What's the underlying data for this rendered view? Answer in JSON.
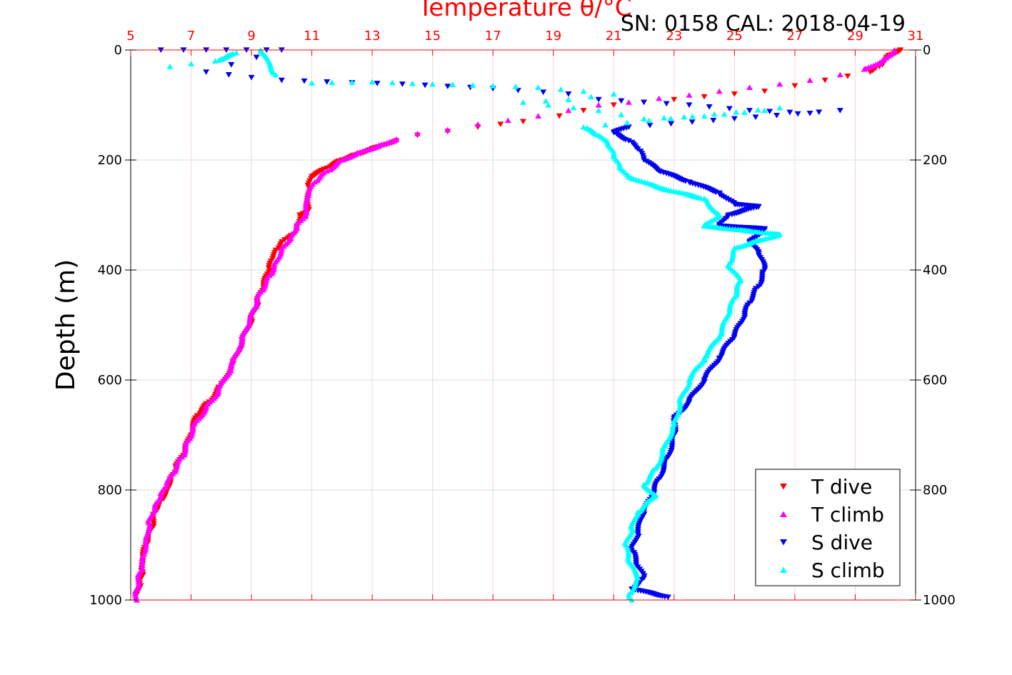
{
  "chart_data": {
    "type": "scatter",
    "annotation": "SN: 0158  CAL: 2018-04-19",
    "top_axis_label": "Temperature θ/°C",
    "ylabel": "Depth (m)",
    "x_top_ticks": [
      5,
      7,
      9,
      11,
      13,
      15,
      17,
      19,
      21,
      23,
      25,
      27,
      29,
      31
    ],
    "x_top_range": [
      5,
      31
    ],
    "y_ticks": [
      0,
      200,
      400,
      600,
      800,
      1000
    ],
    "y_range": [
      0,
      1000
    ],
    "y_reversed": true,
    "grid": true,
    "legend_position": "bottom-right",
    "colors": {
      "t_dive": "#ff0000",
      "t_climb": "#ff00ff",
      "s_dive": "#0000ee",
      "s_climb": "#00ffff",
      "axis_top": "#ff0000",
      "grid": "#d9d9d9"
    },
    "series": [
      {
        "name": "T dive",
        "marker": "triangle-down",
        "color": "#ff0000",
        "points": [
          [
            30.5,
            0
          ],
          [
            30.1,
            10
          ],
          [
            29.8,
            30
          ],
          [
            29.5,
            40
          ],
          [
            28.0,
            55
          ],
          [
            27.0,
            65
          ],
          [
            26.0,
            75
          ],
          [
            25.0,
            80
          ],
          [
            24.0,
            85
          ],
          [
            23.0,
            90
          ],
          [
            22.0,
            95
          ],
          [
            21.0,
            100
          ],
          [
            20.0,
            110
          ],
          [
            19.2,
            120
          ],
          [
            18.0,
            130
          ],
          [
            16.5,
            140
          ],
          [
            15.5,
            148
          ],
          [
            14.5,
            155
          ],
          [
            13.8,
            165
          ],
          [
            13.0,
            180
          ],
          [
            12.5,
            190
          ],
          [
            12.0,
            200
          ],
          [
            11.5,
            215
          ],
          [
            11.0,
            230
          ],
          [
            10.9,
            250
          ],
          [
            10.9,
            290
          ],
          [
            10.6,
            300
          ],
          [
            10.5,
            320
          ],
          [
            10.4,
            335
          ],
          [
            10.1,
            345
          ],
          [
            9.9,
            360
          ],
          [
            9.7,
            380
          ],
          [
            9.6,
            400
          ],
          [
            9.4,
            430
          ],
          [
            9.2,
            460
          ],
          [
            9.0,
            490
          ],
          [
            8.7,
            530
          ],
          [
            8.4,
            570
          ],
          [
            8.0,
            610
          ],
          [
            7.6,
            640
          ],
          [
            7.2,
            665
          ],
          [
            7.0,
            700
          ],
          [
            6.8,
            730
          ],
          [
            6.5,
            760
          ],
          [
            6.3,
            780
          ],
          [
            6.2,
            800
          ],
          [
            6.0,
            820
          ],
          [
            5.8,
            840
          ],
          [
            5.7,
            870
          ],
          [
            5.5,
            900
          ],
          [
            5.4,
            930
          ],
          [
            5.4,
            950
          ],
          [
            5.3,
            970
          ],
          [
            5.2,
            990
          ]
        ]
      },
      {
        "name": "T climb",
        "marker": "triangle-up",
        "color": "#ff00ff",
        "points": [
          [
            30.3,
            0
          ],
          [
            29.9,
            20
          ],
          [
            29.3,
            35
          ],
          [
            28.5,
            45
          ],
          [
            27.5,
            55
          ],
          [
            26.5,
            62
          ],
          [
            25.5,
            68
          ],
          [
            24.5,
            75
          ],
          [
            23.5,
            82
          ],
          [
            22.5,
            88
          ],
          [
            21.5,
            95
          ],
          [
            20.5,
            100
          ],
          [
            19.5,
            110
          ],
          [
            18.5,
            120
          ],
          [
            17.5,
            128
          ],
          [
            16.5,
            135
          ],
          [
            15.5,
            145
          ],
          [
            14.5,
            152
          ],
          [
            13.8,
            162
          ],
          [
            13.2,
            175
          ],
          [
            12.6,
            185
          ],
          [
            12.0,
            200
          ],
          [
            11.5,
            220
          ],
          [
            11.1,
            240
          ],
          [
            10.9,
            260
          ],
          [
            10.8,
            300
          ],
          [
            10.5,
            320
          ],
          [
            10.3,
            340
          ],
          [
            10.0,
            360
          ],
          [
            9.8,
            385
          ],
          [
            9.6,
            410
          ],
          [
            9.3,
            440
          ],
          [
            9.1,
            470
          ],
          [
            8.9,
            500
          ],
          [
            8.6,
            540
          ],
          [
            8.3,
            580
          ],
          [
            7.9,
            620
          ],
          [
            7.5,
            650
          ],
          [
            7.1,
            680
          ],
          [
            6.9,
            710
          ],
          [
            6.7,
            740
          ],
          [
            6.4,
            770
          ],
          [
            6.2,
            790
          ],
          [
            6.0,
            810
          ],
          [
            5.8,
            830
          ],
          [
            5.6,
            860
          ],
          [
            5.5,
            890
          ],
          [
            5.4,
            920
          ],
          [
            5.3,
            950
          ],
          [
            5.2,
            980
          ],
          [
            5.2,
            1000
          ]
        ]
      },
      {
        "name": "S dive",
        "marker": "triangle-down",
        "color": "#0000ee",
        "points": [
          [
            6.0,
            0
          ],
          [
            7.5,
            0
          ],
          [
            9.5,
            0
          ],
          [
            10.0,
            0
          ],
          [
            7.5,
            40
          ],
          [
            9.0,
            50
          ],
          [
            10.0,
            55
          ],
          [
            11.5,
            58
          ],
          [
            14.0,
            62
          ],
          [
            17.0,
            70
          ],
          [
            19.5,
            80
          ],
          [
            20.5,
            90
          ],
          [
            23.5,
            100
          ],
          [
            25.5,
            110
          ],
          [
            27.5,
            115
          ],
          [
            28.5,
            110
          ],
          [
            21.5,
            140
          ],
          [
            21.0,
            150
          ],
          [
            21.5,
            165
          ],
          [
            21.8,
            180
          ],
          [
            22.0,
            200
          ],
          [
            22.5,
            220
          ],
          [
            23.5,
            240
          ],
          [
            24.5,
            260
          ],
          [
            25.0,
            280
          ],
          [
            25.8,
            285
          ],
          [
            24.8,
            300
          ],
          [
            24.5,
            320
          ],
          [
            26.0,
            325
          ],
          [
            25.5,
            350
          ],
          [
            25.8,
            370
          ],
          [
            26.0,
            400
          ],
          [
            25.8,
            430
          ],
          [
            25.5,
            460
          ],
          [
            25.3,
            490
          ],
          [
            25.0,
            520
          ],
          [
            24.5,
            560
          ],
          [
            24.0,
            600
          ],
          [
            23.5,
            640
          ],
          [
            23.0,
            670
          ],
          [
            23.0,
            700
          ],
          [
            22.8,
            740
          ],
          [
            22.5,
            780
          ],
          [
            22.3,
            810
          ],
          [
            22.0,
            840
          ],
          [
            21.8,
            880
          ],
          [
            21.6,
            910
          ],
          [
            21.8,
            940
          ],
          [
            22.0,
            960
          ],
          [
            21.6,
            980
          ],
          [
            22.8,
            995
          ]
        ]
      },
      {
        "name": "S climb",
        "marker": "triangle-up",
        "color": "#00ffff",
        "points": [
          [
            6.3,
            30
          ],
          [
            7.0,
            25
          ],
          [
            7.8,
            20
          ],
          [
            8.5,
            5
          ],
          [
            9.3,
            0
          ],
          [
            9.8,
            45
          ],
          [
            11.0,
            60
          ],
          [
            13.0,
            58
          ],
          [
            15.0,
            62
          ],
          [
            17.0,
            65
          ],
          [
            18.5,
            68
          ],
          [
            20.0,
            75
          ],
          [
            21.0,
            80
          ],
          [
            19.5,
            90
          ],
          [
            18.0,
            95
          ],
          [
            20.5,
            110
          ],
          [
            22.0,
            125
          ],
          [
            24.0,
            120
          ],
          [
            26.0,
            110
          ],
          [
            26.5,
            105
          ],
          [
            20.0,
            140
          ],
          [
            20.5,
            155
          ],
          [
            20.8,
            170
          ],
          [
            21.0,
            190
          ],
          [
            21.2,
            210
          ],
          [
            21.5,
            230
          ],
          [
            22.5,
            250
          ],
          [
            24.0,
            270
          ],
          [
            24.5,
            300
          ],
          [
            24.0,
            320
          ],
          [
            26.5,
            335
          ],
          [
            25.0,
            360
          ],
          [
            24.8,
            390
          ],
          [
            25.2,
            420
          ],
          [
            25.0,
            450
          ],
          [
            24.8,
            480
          ],
          [
            24.5,
            520
          ],
          [
            24.0,
            560
          ],
          [
            23.5,
            600
          ],
          [
            23.2,
            640
          ],
          [
            23.0,
            680
          ],
          [
            22.7,
            720
          ],
          [
            22.4,
            760
          ],
          [
            22.0,
            790
          ],
          [
            22.4,
            810
          ],
          [
            21.8,
            840
          ],
          [
            21.6,
            870
          ],
          [
            21.4,
            900
          ],
          [
            21.5,
            930
          ],
          [
            21.8,
            960
          ],
          [
            21.5,
            990
          ],
          [
            21.6,
            1000
          ]
        ]
      }
    ]
  }
}
